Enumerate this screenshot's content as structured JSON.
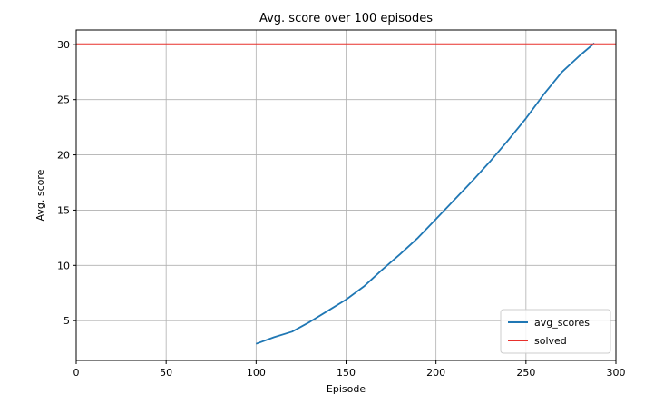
{
  "chart_data": {
    "type": "line",
    "title": "Avg. score over 100 episodes",
    "xlabel": "Episode",
    "ylabel": "Avg. score",
    "xlim": [
      0,
      300
    ],
    "ylim": [
      1.4,
      31.3
    ],
    "x_ticks": [
      0,
      50,
      100,
      150,
      200,
      250,
      300
    ],
    "y_ticks": [
      5,
      10,
      15,
      20,
      25,
      30
    ],
    "grid": true,
    "legend_position": "lower-right",
    "series": [
      {
        "name": "avg_scores",
        "color": "#1f77b4",
        "x": [
          100,
          110,
          120,
          130,
          140,
          150,
          160,
          170,
          180,
          190,
          200,
          210,
          220,
          230,
          240,
          250,
          260,
          270,
          280,
          288
        ],
        "y": [
          2.9,
          3.5,
          4.0,
          4.9,
          5.9,
          6.9,
          8.1,
          9.6,
          11.0,
          12.5,
          14.2,
          15.9,
          17.6,
          19.4,
          21.3,
          23.3,
          25.5,
          27.5,
          29.0,
          30.1
        ]
      },
      {
        "name": "solved",
        "color": "#e8302c",
        "x": [
          0,
          300
        ],
        "y": [
          30,
          30
        ]
      }
    ]
  }
}
